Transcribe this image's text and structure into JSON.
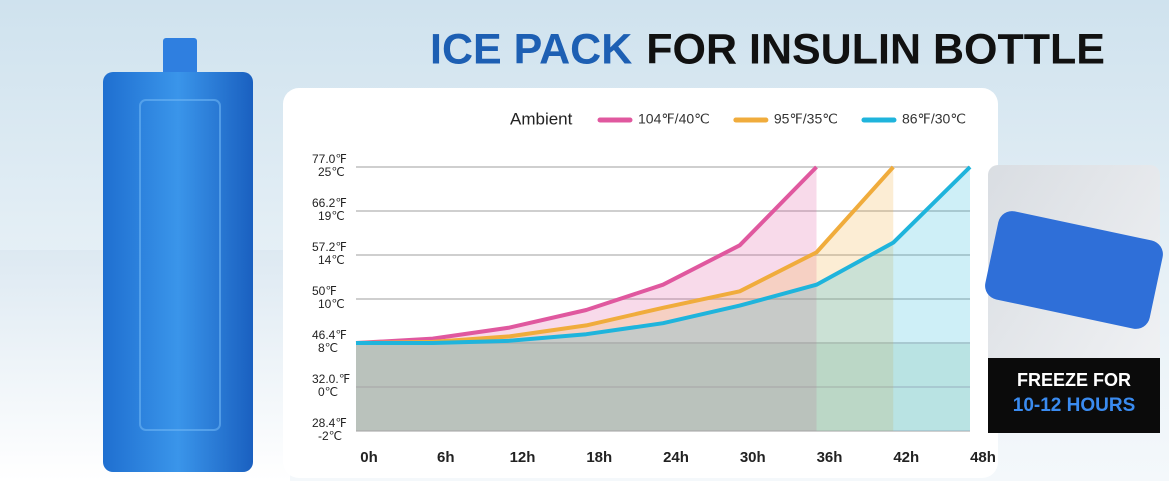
{
  "chart_data": {
    "type": "line",
    "title_parts": [
      "ICE PACK",
      "FOR INSULIN BOTTLE"
    ],
    "legend_title": "Ambient",
    "series": [
      {
        "name": "104℉/40℃",
        "color": "#e0589f",
        "x": [
          0,
          6,
          12,
          18,
          24,
          30,
          36
        ],
        "values": [
          8,
          8.2,
          8.7,
          9.5,
          11.3,
          15.1,
          25
        ]
      },
      {
        "name": "95℉/35℃",
        "color": "#f0ac3c",
        "x": [
          0,
          6,
          12,
          18,
          24,
          30,
          36,
          42
        ],
        "values": [
          8,
          8.05,
          8.3,
          8.8,
          9.6,
          10.7,
          14.3,
          25
        ]
      },
      {
        "name": "86℉/30℃",
        "color": "#1fb4dc",
        "x": [
          0,
          6,
          12,
          18,
          24,
          30,
          36,
          42,
          48
        ],
        "values": [
          8,
          8,
          8.1,
          8.4,
          8.9,
          9.7,
          11.3,
          15.4,
          25
        ]
      }
    ],
    "xlim": [
      0,
      48
    ],
    "xticks": [
      {
        "value": 0,
        "label": "0h"
      },
      {
        "value": 6,
        "label": "6h"
      },
      {
        "value": 12,
        "label": "12h"
      },
      {
        "value": 18,
        "label": "18h"
      },
      {
        "value": 24,
        "label": "24h"
      },
      {
        "value": 30,
        "label": "30h"
      },
      {
        "value": 36,
        "label": "36h"
      },
      {
        "value": 42,
        "label": "42h"
      },
      {
        "value": 48,
        "label": "48h"
      }
    ],
    "yticks": [
      {
        "value": 25,
        "label": "25℃",
        "label_f": "77.0℉"
      },
      {
        "value": 19,
        "label": "19℃",
        "label_f": "66.2℉"
      },
      {
        "value": 14,
        "label": "14℃",
        "label_f": "57.2℉"
      },
      {
        "value": 10,
        "label": "10℃",
        "label_f": "50℉"
      },
      {
        "value": 8,
        "label": "8℃",
        "label_f": "46.4℉"
      },
      {
        "value": 0,
        "label": "0℃",
        "label_f": "32.0.℉"
      },
      {
        "value": -2,
        "label": "-2℃",
        "label_f": "28.4℉"
      }
    ],
    "ylim": [
      -2,
      25
    ],
    "grid": true,
    "annotations": [
      "FREEZE FOR",
      "10-12 HOURS"
    ]
  }
}
